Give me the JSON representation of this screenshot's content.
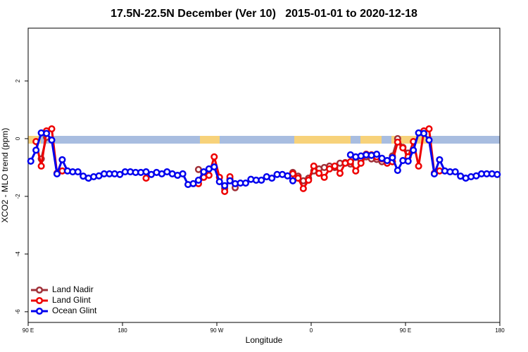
{
  "chart_data": {
    "type": "line",
    "title": "17.5N-22.5N December (Ver 10)   2015-01-01 to 2020-12-18",
    "x_label": "Longitude",
    "y_label": "XCO2 - MLO trend (ppm)",
    "xlim": [
      90,
      540
    ],
    "ylim": [
      -6.37,
      3.83
    ],
    "xticks": [
      {
        "value": 90,
        "label": "90 E"
      },
      180,
      {
        "value": 270,
        "label": "90 W"
      },
      {
        "value": 360,
        "label": "0"
      },
      {
        "value": 450,
        "label": "90 E"
      },
      {
        "value": 540,
        "label": "180"
      }
    ],
    "yticks": [
      -6,
      -4,
      -2,
      0,
      2
    ],
    "legend": "bottom-left",
    "x": [
      92.5,
      97.5,
      102.5,
      107.5,
      112.5,
      117.5,
      122.5,
      127.5,
      132.5,
      137.5,
      142.5,
      147.5,
      152.5,
      157.5,
      162.5,
      167.5,
      172.5,
      177.5,
      182.5,
      187.5,
      192.5,
      197.5,
      202.5,
      207.5,
      212.5,
      217.5,
      222.5,
      227.5,
      232.5,
      237.5,
      242.5,
      247.5,
      252.5,
      257.5,
      262.5,
      267.5,
      272.5,
      277.5,
      282.5,
      287.5,
      292.5,
      297.5,
      302.5,
      307.5,
      312.5,
      317.5,
      322.5,
      327.5,
      332.5,
      337.5,
      342.5,
      347.5,
      352.5,
      357.5,
      362.5,
      367.5,
      372.5,
      377.5,
      382.5,
      387.5,
      392.5,
      397.5,
      402.5,
      407.5,
      412.5,
      417.5,
      422.5,
      427.5,
      432.5,
      437.5,
      442.5,
      447.5,
      452.5,
      457.5,
      462.5,
      467.5,
      472.5,
      477.5,
      482.5,
      487.5,
      492.5,
      497.5,
      502.5,
      507.5,
      512.5,
      517.5,
      522.5,
      527.5,
      532.5,
      537.5
    ],
    "series": [
      {
        "name": "Land Nadir",
        "color": "#a03038",
        "values": [
          null,
          null,
          -0.7,
          0.05,
          null,
          null,
          null,
          null,
          null,
          null,
          null,
          null,
          null,
          null,
          null,
          null,
          null,
          null,
          null,
          null,
          null,
          null,
          null,
          null,
          null,
          null,
          null,
          null,
          null,
          null,
          null,
          null,
          -1.07,
          -1.2,
          null,
          null,
          null,
          -1.73,
          -1.41,
          -1.7,
          null,
          null,
          null,
          null,
          null,
          null,
          null,
          null,
          null,
          null,
          -1.17,
          -1.3,
          -1.46,
          -1.37,
          -1.12,
          -1.05,
          -1.0,
          -0.95,
          -1.0,
          -0.85,
          -0.83,
          -0.88,
          -0.65,
          -0.75,
          -0.63,
          -0.7,
          -0.72,
          -0.8,
          -0.78,
          -0.6,
          0.0,
          -0.3,
          -0.5,
          null,
          null,
          null,
          null,
          null,
          null,
          null,
          null,
          null,
          null,
          null,
          null,
          null,
          null,
          null,
          null,
          null
        ]
      },
      {
        "name": "Land Glint",
        "color": "#ee0000",
        "values": [
          null,
          -0.1,
          -0.95,
          0.27,
          0.34,
          -1.2,
          -1.12,
          null,
          null,
          null,
          null,
          null,
          null,
          null,
          null,
          null,
          null,
          null,
          null,
          null,
          null,
          null,
          -1.37,
          null,
          null,
          null,
          null,
          null,
          null,
          null,
          null,
          null,
          -1.56,
          -1.34,
          -1.27,
          -0.63,
          -1.34,
          -1.83,
          -1.32,
          null,
          null,
          null,
          null,
          null,
          null,
          null,
          null,
          null,
          null,
          null,
          -1.22,
          -1.37,
          -1.73,
          -1.44,
          -0.95,
          -1.2,
          -1.34,
          -1.05,
          -0.95,
          -1.2,
          -0.85,
          -0.8,
          -1.12,
          -0.85,
          -0.54,
          -0.56,
          -0.63,
          -0.7,
          -0.85,
          -0.8,
          -0.12,
          -0.32,
          -0.63,
          -0.1,
          -0.95,
          0.27,
          0.34,
          -1.2,
          -1.12,
          null,
          null,
          null,
          null,
          null,
          null,
          null,
          null,
          null,
          null,
          null
        ]
      },
      {
        "name": "Ocean Glint",
        "color": "#0000ee",
        "values": [
          -0.78,
          -0.4,
          0.2,
          0.18,
          -0.05,
          -1.22,
          -0.73,
          -1.12,
          -1.15,
          -1.15,
          -1.3,
          -1.37,
          -1.32,
          -1.29,
          -1.22,
          -1.22,
          -1.22,
          -1.24,
          -1.15,
          -1.15,
          -1.17,
          -1.17,
          -1.15,
          -1.24,
          -1.17,
          -1.22,
          -1.15,
          -1.22,
          -1.27,
          -1.22,
          -1.59,
          -1.56,
          -1.44,
          -1.15,
          -1.05,
          -0.98,
          -1.49,
          -1.63,
          -1.46,
          -1.56,
          -1.54,
          -1.54,
          -1.41,
          -1.44,
          -1.44,
          -1.32,
          -1.37,
          -1.24,
          -1.24,
          -1.29,
          -1.46,
          null,
          null,
          null,
          null,
          null,
          null,
          null,
          null,
          null,
          null,
          -0.56,
          -0.63,
          -0.6,
          -0.56,
          -0.58,
          -0.54,
          -0.68,
          -0.76,
          -0.66,
          -1.1,
          -0.76,
          -0.78,
          -0.4,
          0.2,
          0.18,
          -0.05,
          -1.22,
          -0.73,
          -1.12,
          -1.15,
          -1.15,
          -1.3,
          -1.37,
          -1.32,
          -1.29,
          -1.22,
          -1.22,
          -1.22,
          -1.24
        ]
      }
    ]
  }
}
